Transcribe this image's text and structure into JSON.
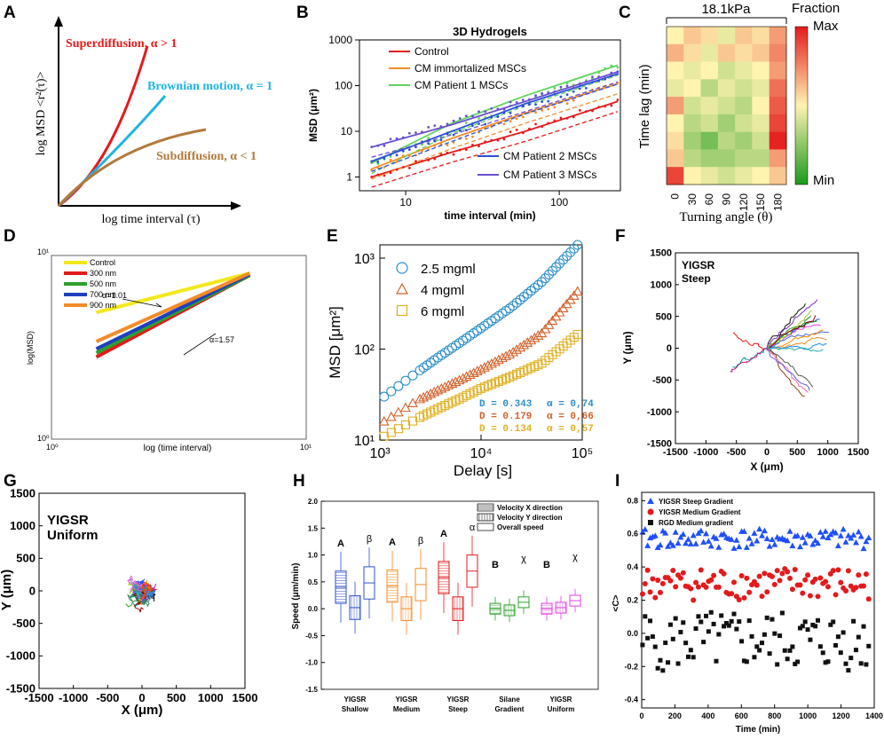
{
  "colors": {
    "red": "#e31a1c",
    "blue": "#2c7fb8",
    "brown": "#b07a3a",
    "green": "#2ca02c",
    "orange": "#f28c28",
    "yellow": "#f2d21b",
    "purple": "#5b4fc9",
    "magenta": "#e040e0",
    "black": "#111111",
    "cyan": "#1fb5e0"
  },
  "panels": {
    "A": {
      "letter": "A",
      "ylabel": "log MSD <r²(τ)>",
      "xlabel": "log time interval (τ)",
      "curves": [
        {
          "label": "Superdiffusion, α > 1",
          "color": "#e31a1c"
        },
        {
          "label": "Brownian motion, α = 1",
          "color": "#1fb5e0"
        },
        {
          "label": "Subdiffusion, α < 1",
          "color": "#b07a3a"
        }
      ]
    },
    "B": {
      "letter": "B",
      "title": "3D Hydrogels",
      "xlabel": "time interval (min)",
      "ylabel": "MSD (μm²)",
      "legend": [
        {
          "label": "Control",
          "color": "#e31a1c"
        },
        {
          "label": "CM immortalized MSCs",
          "color": "#f28c28"
        },
        {
          "label": "CM Patient 1 MSCs",
          "color": "#5fd35f"
        },
        {
          "label": "CM Patient 2 MSCs",
          "color": "#2b4fd6"
        },
        {
          "label": "CM Patient 3 MSCs",
          "color": "#6a4fd0"
        }
      ],
      "xticks": [
        "10",
        "100"
      ],
      "yticks": [
        "1",
        "10",
        "100",
        "1000"
      ]
    },
    "C": {
      "letter": "C",
      "title": "18.1kPa",
      "ylabel": "Time lag (min)",
      "xlabel": "Turning angle (θ)",
      "colorbar_title": "Fraction",
      "cb_max": "Max",
      "cb_min": "Min",
      "xticks": [
        "0",
        "30",
        "60",
        "90",
        "120",
        "150",
        "180"
      ]
    },
    "D": {
      "letter": "D",
      "xlabel": "log (time interval)",
      "ylabel": "log(MSD)",
      "ann1": "α=1.01",
      "ann2": "α=1.57",
      "legend": [
        {
          "label": "Control",
          "color": "#f2e81b"
        },
        {
          "label": "300 nm",
          "color": "#e31a1c"
        },
        {
          "label": "500 nm",
          "color": "#2ca02c"
        },
        {
          "label": "700 nm",
          "color": "#1f3fbf"
        },
        {
          "label": "900 nm",
          "color": "#f28c28"
        }
      ],
      "xticks": [
        "10⁰",
        "10¹"
      ],
      "yticks": [
        "10⁰",
        "10¹"
      ]
    },
    "E": {
      "letter": "E",
      "xlabel": "Delay [s]",
      "ylabel": "MSD [μm²]",
      "legend": [
        {
          "label": "2.5 mgml",
          "color": "#2c8fc8"
        },
        {
          "label": "4 mgml",
          "color": "#d2622a"
        },
        {
          "label": "6 mgml",
          "color": "#e0b020"
        }
      ],
      "fits": [
        {
          "D": "D = 0.343",
          "a": "α = 0,74",
          "color": "#2c8fc8"
        },
        {
          "D": "D = 0.179",
          "a": "α = 0,66",
          "color": "#d2622a"
        },
        {
          "D": "D = 0.134",
          "a": "α = 0,57",
          "color": "#e0b020"
        }
      ],
      "xticks": [
        "10³",
        "10⁴",
        "10⁵"
      ],
      "yticks": [
        "10¹",
        "10²",
        "10³"
      ]
    },
    "F": {
      "letter": "F",
      "label1": "YIGSR",
      "label2": "Steep",
      "xlabel": "X (μm)",
      "ylabel": "Y (μm)",
      "xticks": [
        "-1500",
        "-1000",
        "-500",
        "0",
        "500",
        "1000",
        "1500"
      ],
      "yticks": [
        "1500",
        "1000",
        "500",
        "0",
        "-500",
        "-1000",
        "-1500"
      ]
    },
    "G": {
      "letter": "G",
      "label1": "YIGSR",
      "label2": "Uniform",
      "xlabel": "X (μm)",
      "ylabel": "Y (μm)",
      "xticks": [
        "-1500",
        "-1000",
        "-500",
        "0",
        "500",
        "1000",
        "1500"
      ],
      "yticks": [
        "1500",
        "1000",
        "500",
        "0",
        "-500",
        "-1000",
        "-1500"
      ]
    },
    "H": {
      "letter": "H",
      "ylabel": "Speed (μm/min)",
      "legend": [
        "Velocity X direction",
        "Velocity Y direction",
        "Overall speed"
      ],
      "groups": [
        "YIGSR Shallow",
        "YIGSR Medium",
        "YIGSR Steep",
        "Silane Gradient",
        "YIGSR Uniform"
      ],
      "group_lines": [
        [
          "YIGSR",
          "Shallow"
        ],
        [
          "YIGSR",
          "Medium"
        ],
        [
          "YIGSR",
          "Steep"
        ],
        [
          "Silane",
          "Gradient"
        ],
        [
          "YIGSR",
          "Uniform"
        ]
      ],
      "sig": [
        "A",
        "β",
        "A",
        "β",
        "A",
        "α",
        "B",
        "χ",
        "B",
        "χ"
      ],
      "yticks": [
        "2.0",
        "1.5",
        "1.0",
        "0.5",
        "0.0",
        "-0.5",
        "-1.0",
        "-1.5"
      ]
    },
    "I": {
      "letter": "I",
      "xlabel": "Time (min)",
      "ylabel": "<C>",
      "legend": [
        {
          "label": "YIGSR Steep Gradient",
          "color": "#1f4fff"
        },
        {
          "label": "YIGSR Medium Gradient",
          "color": "#e31a1c"
        },
        {
          "label": "RGD Medium gradient",
          "color": "#111111"
        }
      ],
      "xticks": [
        "0",
        "200",
        "400",
        "600",
        "800",
        "1000",
        "1200",
        "1400"
      ],
      "yticks": [
        "0.8",
        "0.6",
        "0.4",
        "0.2",
        "0.0",
        "-0.2",
        "-0.4"
      ]
    }
  },
  "chart_data": [
    {
      "type": "line",
      "panel": "A",
      "title": "",
      "xlabel": "log time interval (τ)",
      "ylabel": "log MSD <r²(τ)>",
      "series": [
        {
          "name": "Superdiffusion, α > 1",
          "x": [
            0,
            0.2,
            0.4,
            0.6,
            0.8,
            1.0
          ],
          "y": [
            0,
            0.08,
            0.22,
            0.45,
            0.72,
            1.0
          ]
        },
        {
          "name": "Brownian motion, α = 1",
          "x": [
            0,
            0.2,
            0.4,
            0.6,
            0.8
          ],
          "y": [
            0,
            0.15,
            0.32,
            0.5,
            0.68
          ]
        },
        {
          "name": "Subdiffusion, α < 1",
          "x": [
            0,
            0.3,
            0.6,
            0.9,
            1.1
          ],
          "y": [
            0,
            0.2,
            0.32,
            0.38,
            0.42
          ]
        }
      ]
    },
    {
      "type": "line",
      "panel": "B",
      "title": "3D Hydrogels",
      "xlabel": "time interval (min)",
      "ylabel": "MSD (μm²)",
      "xscale": "log",
      "yscale": "log",
      "xlim": [
        5,
        250
      ],
      "ylim": [
        0.5,
        1000
      ],
      "series": [
        {
          "name": "Control",
          "x": [
            6,
            20,
            60,
            240
          ],
          "y": [
            1.0,
            3.5,
            10,
            45
          ]
        },
        {
          "name": "CM immortalized MSCs",
          "x": [
            6,
            20,
            60,
            240
          ],
          "y": [
            1.5,
            7,
            25,
            110
          ]
        },
        {
          "name": "CM Patient 1 MSCs",
          "x": [
            6,
            20,
            60,
            240
          ],
          "y": [
            2,
            15,
            60,
            280
          ]
        },
        {
          "name": "CM Patient 2 MSCs",
          "x": [
            6,
            20,
            60,
            240
          ],
          "y": [
            2.2,
            10,
            40,
            180
          ]
        },
        {
          "name": "CM Patient 3 MSCs",
          "x": [
            6,
            20,
            60,
            240
          ],
          "y": [
            4.5,
            14,
            45,
            200
          ]
        }
      ]
    },
    {
      "type": "heatmap",
      "panel": "C",
      "title": "18.1kPa",
      "xlabel": "Turning angle (θ)",
      "ylabel": "Time lag (min)",
      "x": [
        "0",
        "30",
        "60",
        "90",
        "120",
        "150",
        "180"
      ],
      "values": [
        [
          0.5,
          0.6,
          0.55,
          0.45,
          0.6,
          0.55,
          0.7
        ],
        [
          0.65,
          0.55,
          0.45,
          0.6,
          0.55,
          0.6,
          0.75
        ],
        [
          0.5,
          0.45,
          0.5,
          0.4,
          0.45,
          0.5,
          0.7
        ],
        [
          0.45,
          0.5,
          0.35,
          0.45,
          0.4,
          0.45,
          0.8
        ],
        [
          0.7,
          0.4,
          0.45,
          0.4,
          0.35,
          0.5,
          0.85
        ],
        [
          0.5,
          0.35,
          0.4,
          0.3,
          0.4,
          0.45,
          0.9
        ],
        [
          0.55,
          0.3,
          0.2,
          0.35,
          0.3,
          0.4,
          0.98
        ],
        [
          0.6,
          0.35,
          0.3,
          0.3,
          0.35,
          0.35,
          0.7
        ],
        [
          0.9,
          0.5,
          0.45,
          0.4,
          0.45,
          0.5,
          0.6
        ]
      ]
    },
    {
      "type": "line",
      "panel": "D",
      "xlabel": "log (time interval)",
      "ylabel": "log(MSD)",
      "xscale": "log",
      "yscale": "log",
      "xlim": [
        1,
        10
      ],
      "ylim": [
        1,
        10
      ],
      "series": [
        {
          "name": "Control",
          "x": [
            1.5,
            6
          ],
          "y": [
            4.9,
            8.0
          ]
        },
        {
          "name": "300 nm",
          "x": [
            1.5,
            6
          ],
          "y": [
            2.8,
            7.8
          ]
        },
        {
          "name": "500 nm",
          "x": [
            1.5,
            6
          ],
          "y": [
            2.95,
            7.8
          ]
        },
        {
          "name": "700 nm",
          "x": [
            1.5,
            6
          ],
          "y": [
            3.1,
            7.9
          ]
        },
        {
          "name": "900 nm",
          "x": [
            1.5,
            6
          ],
          "y": [
            3.4,
            8.0
          ]
        }
      ]
    },
    {
      "type": "scatter",
      "panel": "E",
      "xlabel": "Delay [s]",
      "ylabel": "MSD [μm²]",
      "xscale": "log",
      "yscale": "log",
      "xlim": [
        1000,
        100000
      ],
      "ylim": [
        10,
        1400
      ],
      "series": [
        {
          "name": "2.5 mgml",
          "x": [
            1100,
            2300,
            3700,
            6000,
            10000,
            20000,
            40000,
            90000
          ],
          "y": [
            30,
            55,
            80,
            115,
            170,
            290,
            550,
            1400
          ]
        },
        {
          "name": "4 mgml",
          "x": [
            1100,
            2300,
            3700,
            6000,
            10000,
            20000,
            40000,
            90000
          ],
          "y": [
            16,
            27,
            35,
            45,
            60,
            90,
            150,
            430
          ]
        },
        {
          "name": "6 mgml",
          "x": [
            1100,
            2300,
            3700,
            6000,
            10000,
            20000,
            40000,
            90000
          ],
          "y": [
            11,
            17,
            22,
            28,
            37,
            50,
            70,
            145
          ]
        }
      ]
    },
    {
      "type": "line",
      "panel": "F",
      "title": "YIGSR Steep",
      "xlabel": "X (μm)",
      "ylabel": "Y (μm)",
      "xlim": [
        -1500,
        1500
      ],
      "ylim": [
        -1500,
        1500
      ]
    },
    {
      "type": "line",
      "panel": "G",
      "title": "YIGSR Uniform",
      "xlabel": "X (μm)",
      "ylabel": "Y (μm)",
      "xlim": [
        -1500,
        1500
      ],
      "ylim": [
        -1500,
        1500
      ]
    },
    {
      "type": "bar",
      "panel": "H",
      "ylabel": "Speed (μm/min)",
      "ylim": [
        -1.5,
        2.0
      ],
      "categories": [
        "YIGSR Shallow",
        "YIGSR Medium",
        "YIGSR Steep",
        "Silane Gradient",
        "YIGSR Uniform"
      ],
      "series": [
        {
          "name": "Velocity X direction",
          "values": [
            0.4,
            0.42,
            0.58,
            0.0,
            0.0
          ]
        },
        {
          "name": "Velocity Y direction",
          "values": [
            0.02,
            0.0,
            0.0,
            -0.03,
            0.02
          ]
        },
        {
          "name": "Overall speed",
          "values": [
            0.48,
            0.45,
            0.7,
            0.12,
            0.15
          ]
        }
      ]
    },
    {
      "type": "scatter",
      "panel": "I",
      "xlabel": "Time (min)",
      "ylabel": "<C>",
      "xlim": [
        0,
        1400
      ],
      "ylim": [
        -0.45,
        0.85
      ],
      "series": [
        {
          "name": "YIGSR Steep Gradient",
          "mean": 0.57
        },
        {
          "name": "YIGSR Medium Gradient",
          "mean": 0.3
        },
        {
          "name": "RGD Medium gradient",
          "mean": -0.05
        }
      ]
    }
  ]
}
